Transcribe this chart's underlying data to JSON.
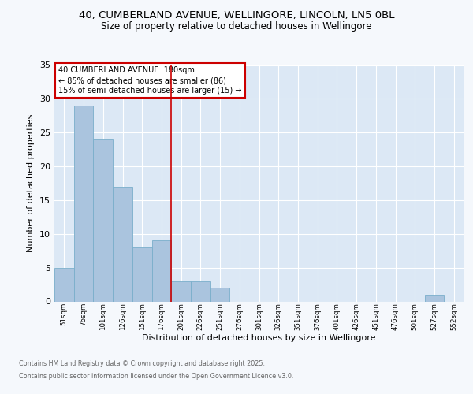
{
  "title_line1": "40, CUMBERLAND AVENUE, WELLINGORE, LINCOLN, LN5 0BL",
  "title_line2": "Size of property relative to detached houses in Wellingore",
  "xlabel": "Distribution of detached houses by size in Wellingore",
  "ylabel": "Number of detached properties",
  "bar_labels": [
    "51sqm",
    "76sqm",
    "101sqm",
    "126sqm",
    "151sqm",
    "176sqm",
    "201sqm",
    "226sqm",
    "251sqm",
    "276sqm",
    "301sqm",
    "326sqm",
    "351sqm",
    "376sqm",
    "401sqm",
    "426sqm",
    "451sqm",
    "476sqm",
    "501sqm",
    "527sqm",
    "552sqm"
  ],
  "bar_values": [
    5,
    29,
    24,
    17,
    8,
    9,
    3,
    3,
    2,
    0,
    0,
    0,
    0,
    0,
    0,
    0,
    0,
    0,
    0,
    1,
    0
  ],
  "bar_color": "#aac4de",
  "bar_edgecolor": "#7aaecb",
  "vline_color": "#cc0000",
  "annotation_text": "40 CUMBERLAND AVENUE: 180sqm\n← 85% of detached houses are smaller (86)\n15% of semi-detached houses are larger (15) →",
  "annotation_box_color": "#ffffff",
  "annotation_box_edgecolor": "#cc0000",
  "ylim": [
    0,
    35
  ],
  "yticks": [
    0,
    5,
    10,
    15,
    20,
    25,
    30,
    35
  ],
  "background_color": "#dce8f5",
  "fig_background": "#f5f8fc",
  "grid_color": "#ffffff",
  "footer_line1": "Contains HM Land Registry data © Crown copyright and database right 2025.",
  "footer_line2": "Contains public sector information licensed under the Open Government Licence v3.0."
}
